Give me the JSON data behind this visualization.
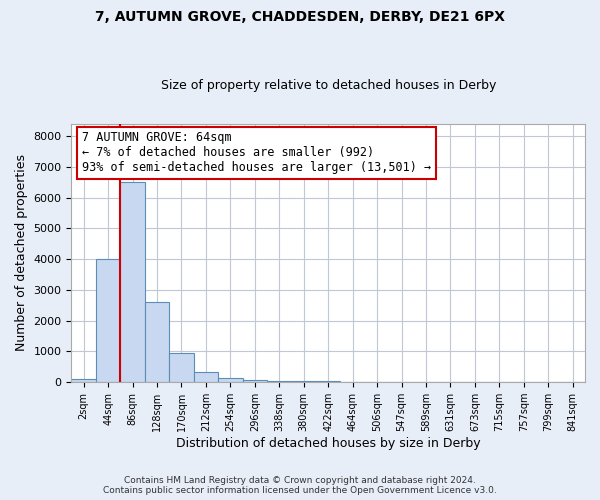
{
  "title1": "7, AUTUMN GROVE, CHADDESDEN, DERBY, DE21 6PX",
  "title2": "Size of property relative to detached houses in Derby",
  "xlabel": "Distribution of detached houses by size in Derby",
  "ylabel": "Number of detached properties",
  "bin_labels": [
    "2sqm",
    "44sqm",
    "86sqm",
    "128sqm",
    "170sqm",
    "212sqm",
    "254sqm",
    "296sqm",
    "338sqm",
    "380sqm",
    "422sqm",
    "464sqm",
    "506sqm",
    "547sqm",
    "589sqm",
    "631sqm",
    "673sqm",
    "715sqm",
    "757sqm",
    "799sqm",
    "841sqm"
  ],
  "bar_heights": [
    100,
    4000,
    6500,
    2600,
    950,
    320,
    130,
    75,
    50,
    30,
    55,
    2,
    2,
    2,
    2,
    2,
    2,
    2,
    2,
    2,
    2
  ],
  "bar_color": "#c8d8f0",
  "bar_edge_color": "#5b8db8",
  "property_line_color": "#cc0000",
  "annotation_text": "7 AUTUMN GROVE: 64sqm\n← 7% of detached houses are smaller (992)\n93% of semi-detached houses are larger (13,501) →",
  "annotation_box_color": "#ffffff",
  "annotation_box_edge_color": "#cc0000",
  "ylim": [
    0,
    8400
  ],
  "yticks": [
    0,
    1000,
    2000,
    3000,
    4000,
    5000,
    6000,
    7000,
    8000
  ],
  "footnote1": "Contains HM Land Registry data © Crown copyright and database right 2024.",
  "footnote2": "Contains public sector information licensed under the Open Government Licence v3.0.",
  "background_color": "#e8eef8",
  "plot_bg_color": "#ffffff",
  "grid_color": "#c0c8d8"
}
